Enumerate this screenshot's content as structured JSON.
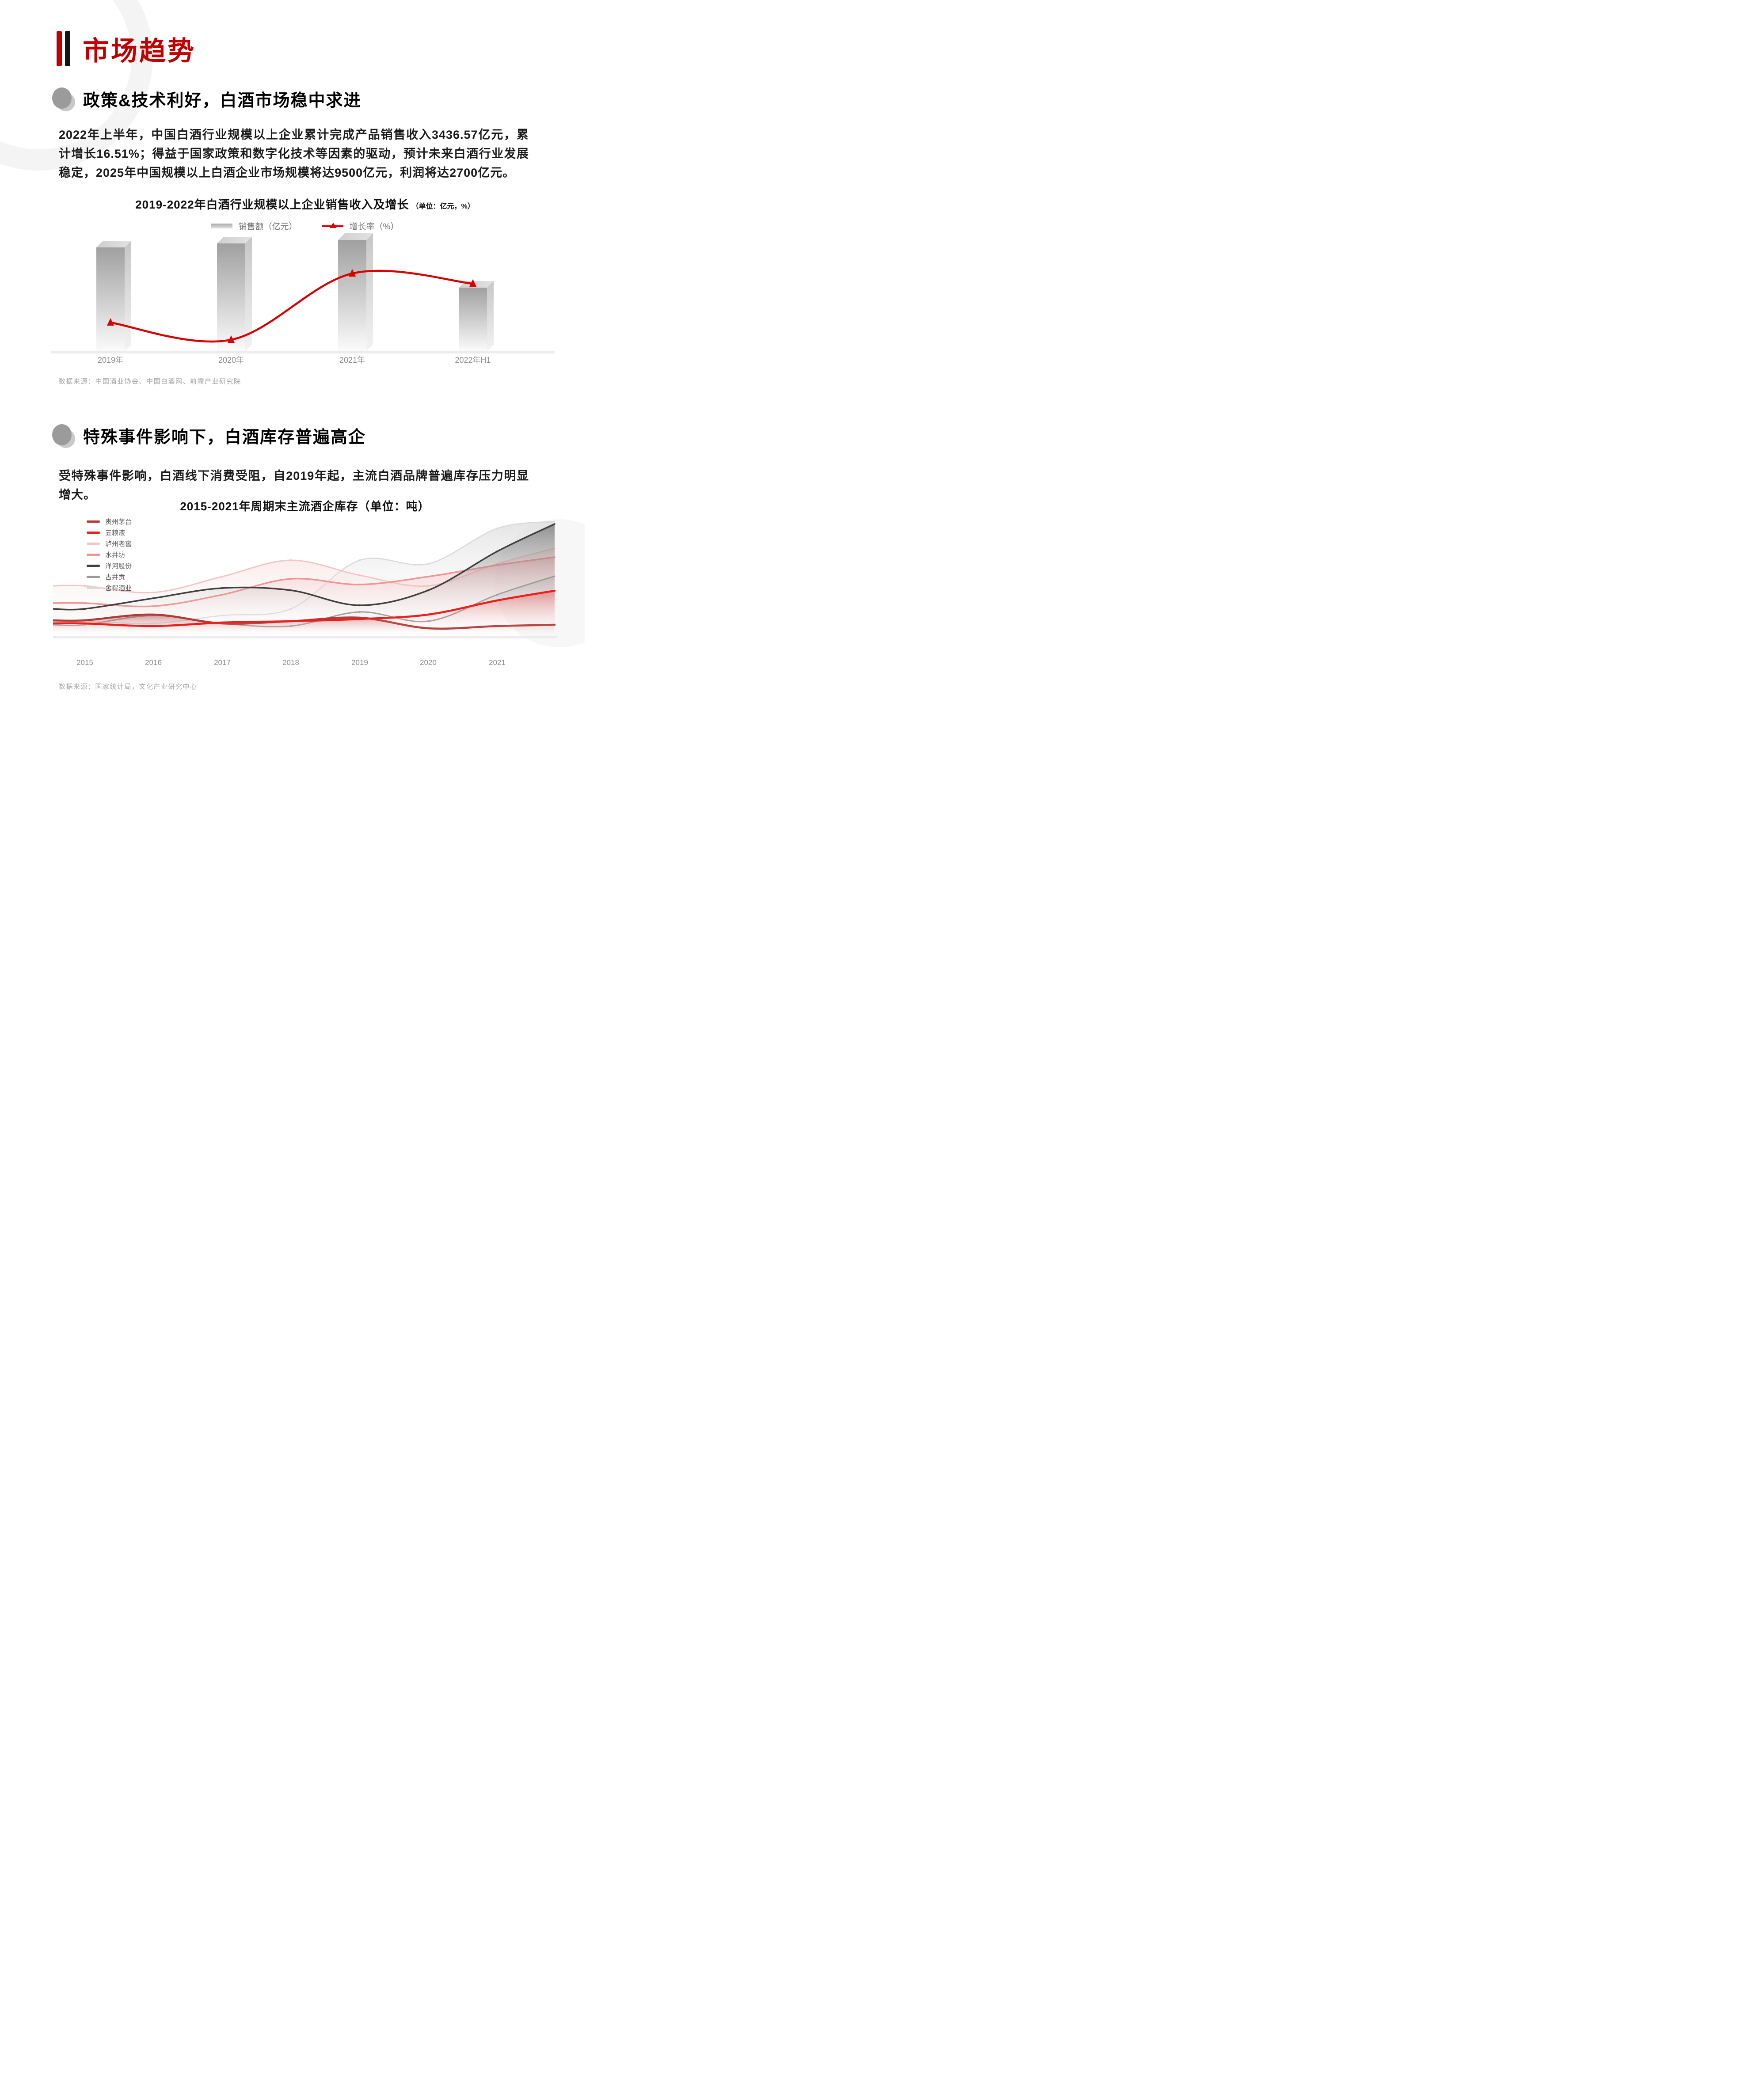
{
  "page": {
    "title": "市场趋势",
    "accent_color": "#C00000",
    "background": "#FFFFFF"
  },
  "sections": [
    {
      "heading": "政策&技术利好，白酒市场稳中求进",
      "paragraph": "2022年上半年，中国白酒行业规模以上企业累计完成产品销售收入3436.57亿元，累计增长16.51%；得益于国家政策和数字化技术等因素的驱动，预计未来白酒行业发展稳定，2025年中国规模以上白酒企业市场规模将达9500亿元，利润将达2700亿元。",
      "source": "数据来源：中国酒业协会、中国白酒网、前瞻产业研究院"
    },
    {
      "heading": "特殊事件影响下，白酒库存普遍高企",
      "paragraph": "受特殊事件影响，白酒线下消费受阻，自2019年起，主流白酒品牌普遍库存压力明显增大。",
      "source": "数据来源：国家统计局，文化产业研究中心"
    }
  ],
  "chart_data": [
    {
      "type": "bar",
      "title": "2019-2022年白酒行业规模以上企业销售收入及增长",
      "title_unit": "（单位：亿元，%）",
      "categories": [
        "2019年",
        "2020年",
        "2021年",
        "2022年H1"
      ],
      "series": [
        {
          "name": "销售额（亿元）",
          "type": "bar",
          "color": "#BFBFBF",
          "values": [
            5618,
            5836,
            6033,
            3437
          ]
        },
        {
          "name": "增长率（%）",
          "type": "line",
          "color": "#D80000",
          "values": [
            8.2,
            4.6,
            18.6,
            16.5
          ]
        }
      ],
      "ylim": [
        0,
        6500
      ],
      "grid": false,
      "values_estimated": true,
      "legend_position": "top-center"
    },
    {
      "type": "area",
      "title": "2015-2021年周期末主流酒企库存（单位：吨）",
      "x": [
        "2015",
        "2016",
        "2017",
        "2018",
        "2019",
        "2020",
        "2021"
      ],
      "series": [
        {
          "name": "贵州茅台",
          "color": "#B03A36",
          "values": [
            14,
            19,
            11,
            13,
            16,
            7,
            9
          ]
        },
        {
          "name": "五粮液",
          "color": "#E8211D",
          "values": [
            11,
            9,
            12,
            13,
            15,
            19,
            31
          ]
        },
        {
          "name": "泸州老窖",
          "color": "#F2C6C6",
          "values": [
            44,
            38,
            52,
            66,
            53,
            44,
            63
          ]
        },
        {
          "name": "水井坊",
          "color": "#F09494",
          "values": [
            29,
            26,
            36,
            50,
            45,
            52,
            62
          ]
        },
        {
          "name": "洋河股份",
          "color": "#3F3F3F",
          "values": [
            24,
            33,
            42,
            40,
            27,
            40,
            74
          ]
        },
        {
          "name": "古井贡",
          "color": "#9A9A9A",
          "values": [
            10,
            18,
            11,
            9,
            21,
            13,
            36
          ]
        },
        {
          "name": "舍得酒业",
          "color": "#D9D9D9",
          "values": [
            13,
            11,
            18,
            24,
            66,
            63,
            94
          ]
        }
      ],
      "values_unit": "relative-index-0-100",
      "values_estimated": true,
      "grid": false,
      "legend_position": "top-left"
    }
  ]
}
